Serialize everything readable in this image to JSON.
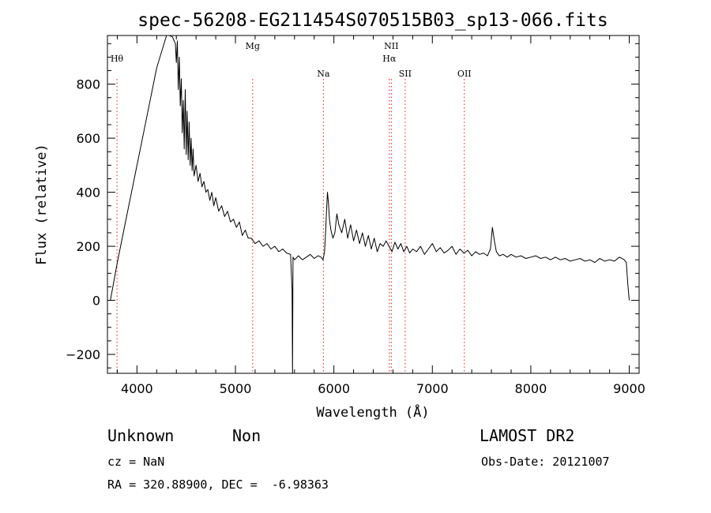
{
  "chart_data": {
    "type": "line",
    "title": "spec-56208-EG211454S070515B03_sp13-066.fits",
    "xlabel": "Wavelength (Å)",
    "ylabel": "Flux (relative)",
    "xlim": [
      3700,
      9100
    ],
    "ylim": [
      -270,
      980
    ],
    "xticks": [
      4000,
      5000,
      6000,
      7000,
      8000,
      9000
    ],
    "yticks": [
      -200,
      0,
      200,
      400,
      600,
      800
    ],
    "grid": false,
    "series": [
      {
        "x": [
          3730,
          3800,
          3900,
          4000,
          4100,
          4200,
          4300,
          4330,
          4360,
          4390,
          4400,
          4410,
          4420,
          4430,
          4440,
          4450,
          4460,
          4470,
          4480,
          4490,
          4500,
          4510,
          4520,
          4530,
          4540,
          4550,
          4560,
          4570,
          4580,
          4600,
          4620,
          4640,
          4660,
          4680,
          4700,
          4720,
          4740,
          4760,
          4780,
          4800,
          4830,
          4860,
          4890,
          4920,
          4950,
          4980,
          5010,
          5040,
          5070,
          5100,
          5130,
          5160,
          5200,
          5240,
          5280,
          5320,
          5360,
          5400,
          5440,
          5480,
          5520,
          5560,
          5575,
          5580,
          5585,
          5600,
          5640,
          5680,
          5720,
          5760,
          5800,
          5840,
          5870,
          5890,
          5905,
          5915,
          5925,
          5935,
          5945,
          5955,
          5970,
          5990,
          6010,
          6030,
          6050,
          6080,
          6110,
          6140,
          6170,
          6200,
          6230,
          6260,
          6290,
          6320,
          6350,
          6380,
          6410,
          6440,
          6470,
          6500,
          6530,
          6560,
          6590,
          6620,
          6650,
          6680,
          6710,
          6740,
          6770,
          6800,
          6840,
          6880,
          6920,
          6960,
          7000,
          7040,
          7080,
          7120,
          7160,
          7200,
          7240,
          7280,
          7320,
          7360,
          7400,
          7440,
          7480,
          7520,
          7560,
          7590,
          7610,
          7630,
          7650,
          7680,
          7720,
          7760,
          7800,
          7850,
          7900,
          7950,
          8000,
          8050,
          8100,
          8150,
          8200,
          8250,
          8300,
          8350,
          8400,
          8450,
          8500,
          8550,
          8600,
          8650,
          8700,
          8750,
          8800,
          8850,
          8900,
          8950,
          8970,
          8985,
          9000
        ],
        "y": [
          0,
          140,
          320,
          500,
          680,
          860,
          980,
          980,
          975,
          950,
          880,
          960,
          780,
          900,
          720,
          820,
          620,
          740,
          560,
          780,
          540,
          700,
          520,
          660,
          500,
          600,
          480,
          560,
          460,
          500,
          440,
          470,
          420,
          440,
          400,
          410,
          370,
          400,
          350,
          380,
          330,
          350,
          310,
          330,
          290,
          300,
          270,
          290,
          240,
          260,
          230,
          230,
          210,
          220,
          200,
          210,
          190,
          200,
          180,
          190,
          175,
          170,
          40,
          -270,
          160,
          150,
          165,
          150,
          160,
          170,
          155,
          165,
          160,
          150,
          180,
          250,
          330,
          400,
          360,
          300,
          260,
          230,
          250,
          320,
          280,
          250,
          300,
          230,
          280,
          220,
          260,
          210,
          250,
          200,
          240,
          190,
          230,
          180,
          210,
          200,
          220,
          200,
          180,
          215,
          190,
          210,
          180,
          200,
          175,
          190,
          180,
          200,
          170,
          190,
          210,
          180,
          195,
          175,
          185,
          200,
          170,
          190,
          175,
          185,
          165,
          180,
          170,
          175,
          165,
          190,
          270,
          220,
          180,
          165,
          170,
          160,
          170,
          160,
          165,
          155,
          160,
          165,
          155,
          160,
          150,
          160,
          150,
          155,
          145,
          150,
          155,
          145,
          150,
          140,
          155,
          145,
          150,
          145,
          160,
          150,
          140,
          60,
          0
        ],
        "name": ""
      }
    ],
    "lines": [
      {
        "label": "Hθ",
        "x": 3797
      },
      {
        "label": "Mg",
        "x": 5175
      },
      {
        "label": "Na",
        "x": 5893
      },
      {
        "label": "NII",
        "x": 6583
      },
      {
        "label": "Hα",
        "x": 6563
      },
      {
        "label": "SII",
        "x": 6724
      },
      {
        "label": "OII",
        "x": 7325
      }
    ]
  },
  "info": {
    "class": "Unknown",
    "subclass": "Non",
    "release": "LAMOST DR2",
    "cz": "cz = NaN",
    "obs_date": "Obs-Date: 20121007",
    "radec": "RA = 320.88900, DEC =  -6.98363"
  }
}
